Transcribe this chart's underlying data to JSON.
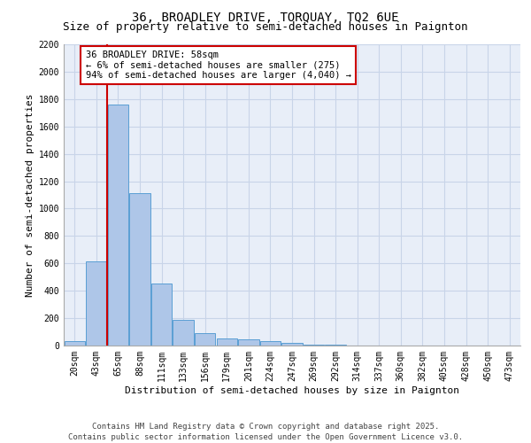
{
  "title_line1": "36, BROADLEY DRIVE, TORQUAY, TQ2 6UE",
  "title_line2": "Size of property relative to semi-detached houses in Paignton",
  "xlabel": "Distribution of semi-detached houses by size in Paignton",
  "ylabel": "Number of semi-detached properties",
  "annotation_title": "36 BROADLEY DRIVE: 58sqm",
  "annotation_line2": "← 6% of semi-detached houses are smaller (275)",
  "annotation_line3": "94% of semi-detached houses are larger (4,040) →",
  "footer_line1": "Contains HM Land Registry data © Crown copyright and database right 2025.",
  "footer_line2": "Contains public sector information licensed under the Open Government Licence v3.0.",
  "bar_values": [
    30,
    615,
    1760,
    1115,
    455,
    185,
    90,
    50,
    45,
    30,
    20,
    5,
    5,
    0,
    0,
    0,
    0,
    0,
    0,
    0,
    0
  ],
  "categories": [
    "20sqm",
    "43sqm",
    "65sqm",
    "88sqm",
    "111sqm",
    "133sqm",
    "156sqm",
    "179sqm",
    "201sqm",
    "224sqm",
    "247sqm",
    "269sqm",
    "292sqm",
    "314sqm",
    "337sqm",
    "360sqm",
    "382sqm",
    "405sqm",
    "428sqm",
    "450sqm",
    "473sqm"
  ],
  "bar_color": "#aec6e8",
  "bar_edge_color": "#5a9fd4",
  "grid_color": "#c8d4e8",
  "background_color": "#e8eef8",
  "vline_color": "#cc0000",
  "annotation_box_color": "#cc0000",
  "ylim": [
    0,
    2200
  ],
  "yticks": [
    0,
    200,
    400,
    600,
    800,
    1000,
    1200,
    1400,
    1600,
    1800,
    2000,
    2200
  ],
  "title_fontsize": 10,
  "subtitle_fontsize": 9,
  "axis_label_fontsize": 8,
  "tick_fontsize": 7,
  "annotation_fontsize": 7.5,
  "footer_fontsize": 6.5
}
